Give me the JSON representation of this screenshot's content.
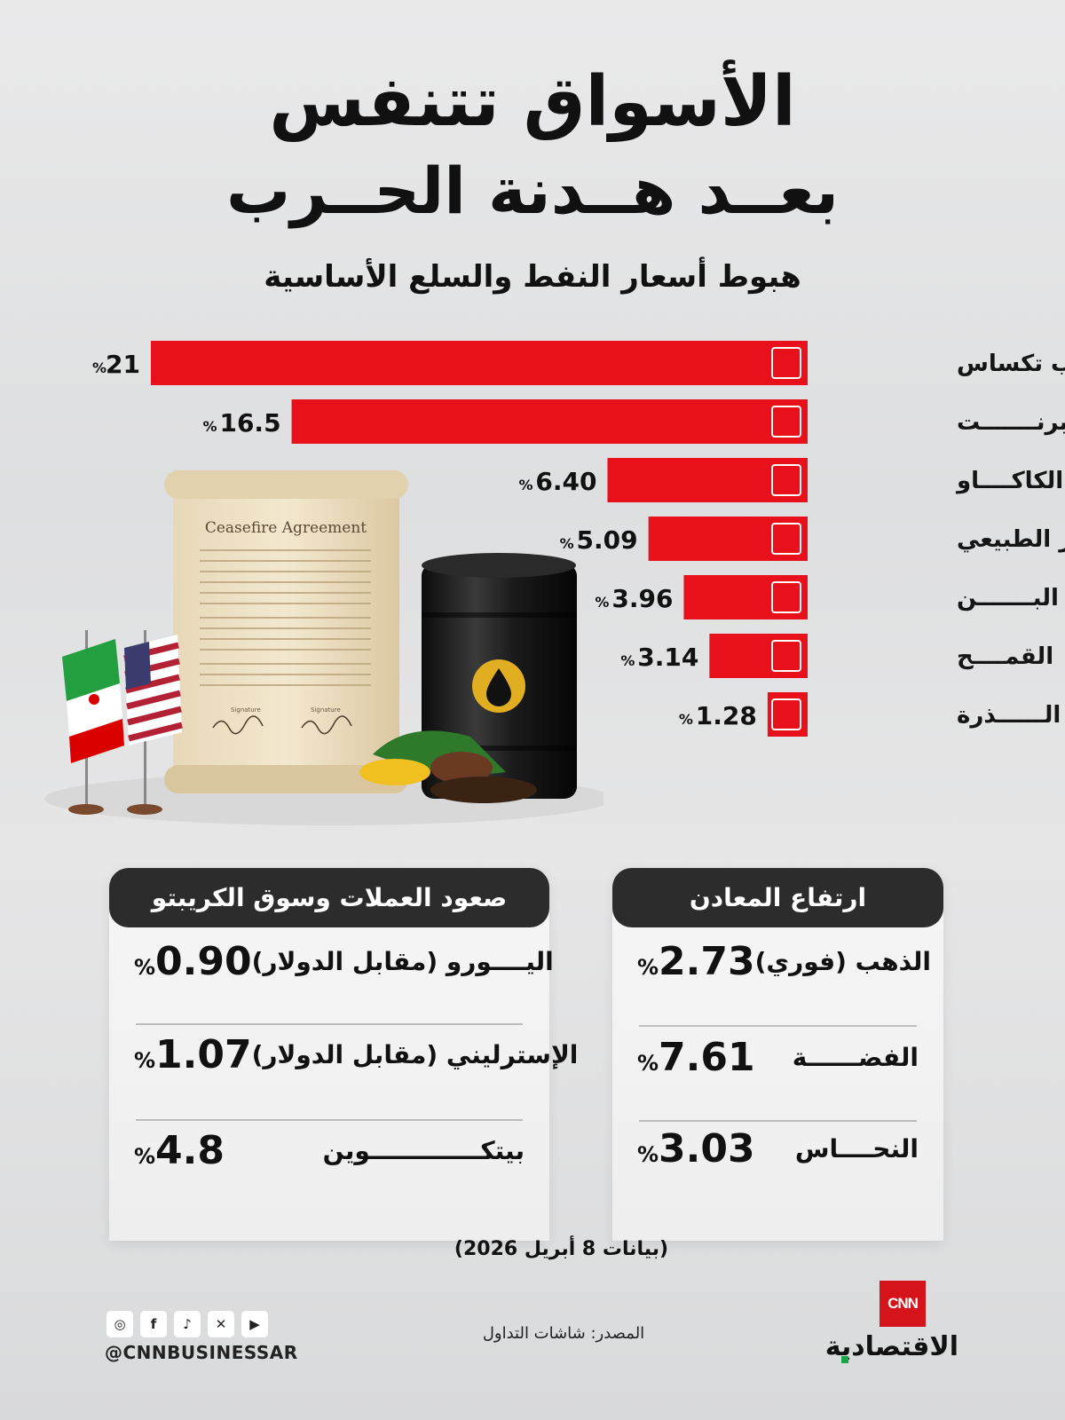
{
  "header": {
    "title_line1": "الأسواق تتنفس",
    "title_line2": "بعــد هــدنة الحــرب",
    "subtitle": "هبوط أسعار النفط والسلع الأساسية"
  },
  "chart_data": {
    "type": "bar",
    "orientation": "horizontal",
    "categories": [
      "غرب تكساس",
      "برنـــــــت",
      "الكاكــــاو",
      "الغاز الطبيعي",
      "البـــــــن",
      "القمــــح",
      "الــــــذرة"
    ],
    "values": [
      21,
      16.5,
      6.4,
      5.09,
      3.96,
      3.14,
      1.28
    ],
    "value_labels": [
      "21",
      "16.5",
      "6.40",
      "5.09",
      "3.96",
      "3.14",
      "1.28"
    ],
    "unit": "%",
    "icons": [
      "oil-can-icon",
      "oil-pump-icon",
      "cocoa-icon",
      "gas-factory-icon",
      "coffee-bean-icon",
      "wheat-icon",
      "corn-icon"
    ],
    "bar_color": "#e8101a",
    "title": "هبوط أسعار النفط والسلع الأساسية"
  },
  "illustration": {
    "scroll_title": "Ceasefire Agreement",
    "signature_label_left": "Signature",
    "signature_label_right": "Signature"
  },
  "metals": {
    "header": "ارتفاع المعادن",
    "rows": [
      {
        "label": "الذهب (فوري)",
        "value": "2.73",
        "unit": "%"
      },
      {
        "label": "الفضــــــة",
        "value": "7.61",
        "unit": "%"
      },
      {
        "label": "النحــــاس",
        "value": "3.03",
        "unit": "%"
      }
    ]
  },
  "currencies": {
    "header": "صعود العملات وسوق الكريبتو",
    "rows": [
      {
        "label": "اليــــورو (مقابل الدولار)",
        "value": "0.90",
        "unit": "%"
      },
      {
        "label": "الإسترليني (مقابل الدولار)",
        "value": "1.07",
        "unit": "%"
      },
      {
        "label": "بيتكـــــــــــــوين",
        "value": "4.8",
        "unit": "%"
      }
    ]
  },
  "footer": {
    "date_note": "(بيانات 8 أبريل 2026)",
    "source": "المصدر: شاشات التداول",
    "handle": "@CNNBUSINESSAR",
    "social_icons": [
      "instagram-icon",
      "facebook-icon",
      "tiktok-icon",
      "x-icon",
      "youtube-icon"
    ],
    "brand_logo": "CNN",
    "brand_arabic": "الاقتصادية"
  }
}
